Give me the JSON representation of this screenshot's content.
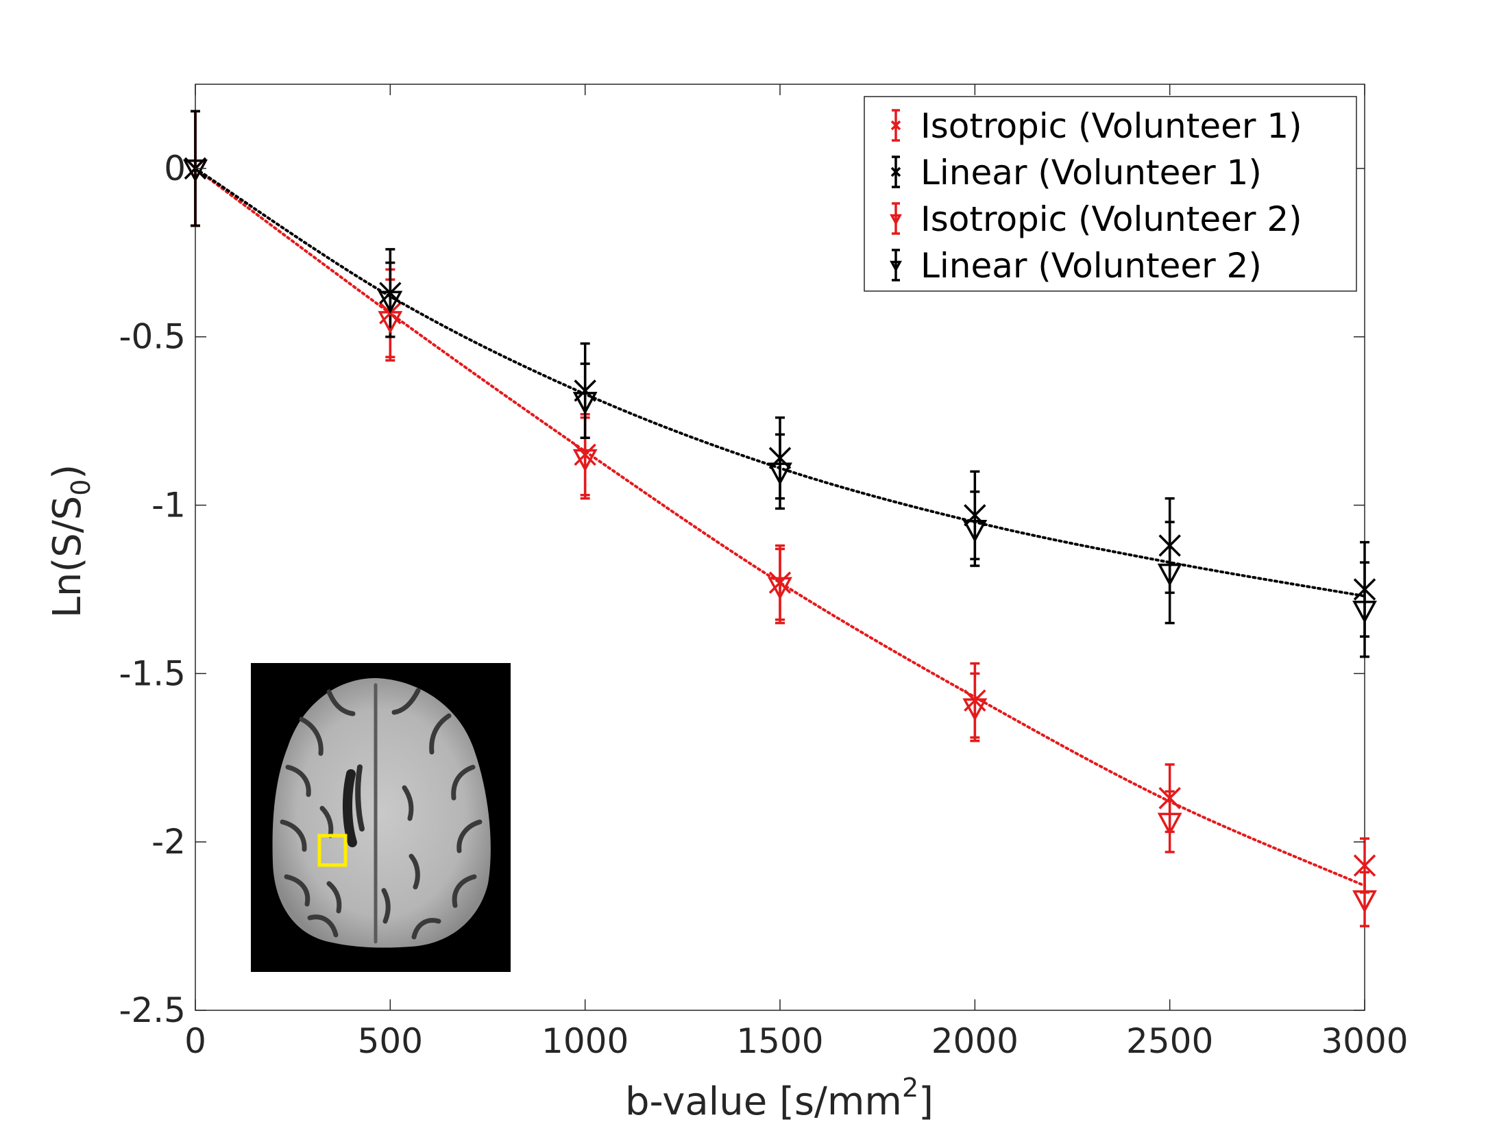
{
  "chart_data": {
    "type": "scatter",
    "xlabel": {
      "main": "b-value [s/mm",
      "sup": "2",
      "tail": "]"
    },
    "ylabel": {
      "main": "Ln(S/S",
      "sub": "0",
      "tail": ")"
    },
    "xlim": [
      0,
      3000
    ],
    "ylim": [
      -2.5,
      0.25
    ],
    "xticks": [
      "0",
      "500",
      "1000",
      "1500",
      "2000",
      "2500",
      "3000"
    ],
    "yticks": [
      "0",
      "-0.5",
      "-1",
      "-1.5",
      "-2",
      "-2.5"
    ],
    "grid": false,
    "legend_position": "top-right",
    "x": [
      0,
      500,
      1000,
      1500,
      2000,
      2500,
      3000
    ],
    "series": [
      {
        "name": "Isotropic (Volunteer 1)",
        "color": "#e41a1c",
        "marker": "x",
        "values": [
          0,
          -0.43,
          -0.85,
          -1.23,
          -1.58,
          -1.87,
          -2.07
        ],
        "errors": [
          0.17,
          0.13,
          0.12,
          0.11,
          0.11,
          0.1,
          0.08
        ]
      },
      {
        "name": "Linear (Volunteer 1)",
        "color": "#000000",
        "marker": "x",
        "values": [
          0,
          -0.37,
          -0.66,
          -0.86,
          -1.03,
          -1.12,
          -1.25
        ],
        "errors": [
          0.17,
          0.13,
          0.14,
          0.12,
          0.13,
          0.14,
          0.14
        ]
      },
      {
        "name": "Isotropic (Volunteer 2)",
        "color": "#e41a1c",
        "marker": "triangle-down",
        "values": [
          0,
          -0.45,
          -0.86,
          -1.24,
          -1.6,
          -1.94,
          -2.17
        ],
        "errors": [
          0.17,
          0.12,
          0.12,
          0.11,
          0.1,
          0.09,
          0.08
        ]
      },
      {
        "name": "Linear (Volunteer 2)",
        "color": "#000000",
        "marker": "triangle-down",
        "values": [
          0,
          -0.39,
          -0.69,
          -0.9,
          -1.07,
          -1.2,
          -1.31
        ],
        "errors": [
          0.17,
          0.11,
          0.11,
          0.11,
          0.11,
          0.15,
          0.14
        ]
      }
    ],
    "fit_lines": [
      {
        "color": "#e41a1c",
        "style": "dotted",
        "values": [
          0,
          -0.43,
          -0.84,
          -1.23,
          -1.57,
          -1.88,
          -2.13
        ]
      },
      {
        "color": "#000000",
        "style": "dotted",
        "values": [
          0,
          -0.38,
          -0.67,
          -0.89,
          -1.05,
          -1.17,
          -1.27
        ]
      }
    ],
    "inset": {
      "type": "brain-mri-slice",
      "roi_color": "#ffee00"
    }
  }
}
